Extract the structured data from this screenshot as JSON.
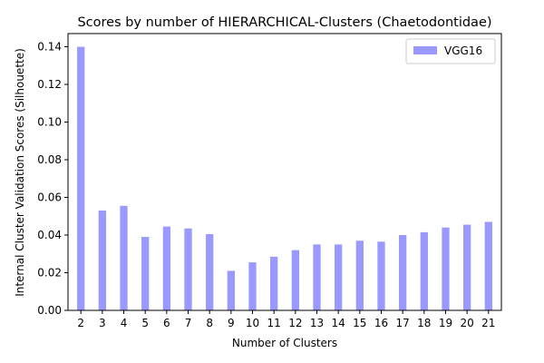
{
  "chart_data": {
    "type": "bar",
    "title": "Scores by number of HIERARCHICAL-Clusters (Chaetodontidae)",
    "xlabel": "Number of Clusters",
    "ylabel": "Internal Cluster Validation Scores (Silhouette)",
    "categories": [
      "2",
      "3",
      "4",
      "5",
      "6",
      "7",
      "8",
      "9",
      "10",
      "11",
      "12",
      "13",
      "14",
      "15",
      "16",
      "17",
      "18",
      "19",
      "20",
      "21"
    ],
    "series": [
      {
        "name": "VGG16",
        "color": "#9999ff",
        "values": [
          0.14,
          0.053,
          0.0555,
          0.039,
          0.0445,
          0.0435,
          0.0405,
          0.021,
          0.0255,
          0.0285,
          0.032,
          0.035,
          0.035,
          0.037,
          0.0365,
          0.04,
          0.0415,
          0.044,
          0.0455,
          0.047
        ]
      }
    ],
    "ylim": [
      0,
      0.147
    ],
    "yticks": [
      0.0,
      0.02,
      0.04,
      0.06,
      0.08,
      0.1,
      0.12,
      0.14
    ],
    "ytick_labels": [
      "0.00",
      "0.02",
      "0.04",
      "0.06",
      "0.08",
      "0.10",
      "0.12",
      "0.14"
    ],
    "grid": false,
    "legend_position": "top-right"
  }
}
